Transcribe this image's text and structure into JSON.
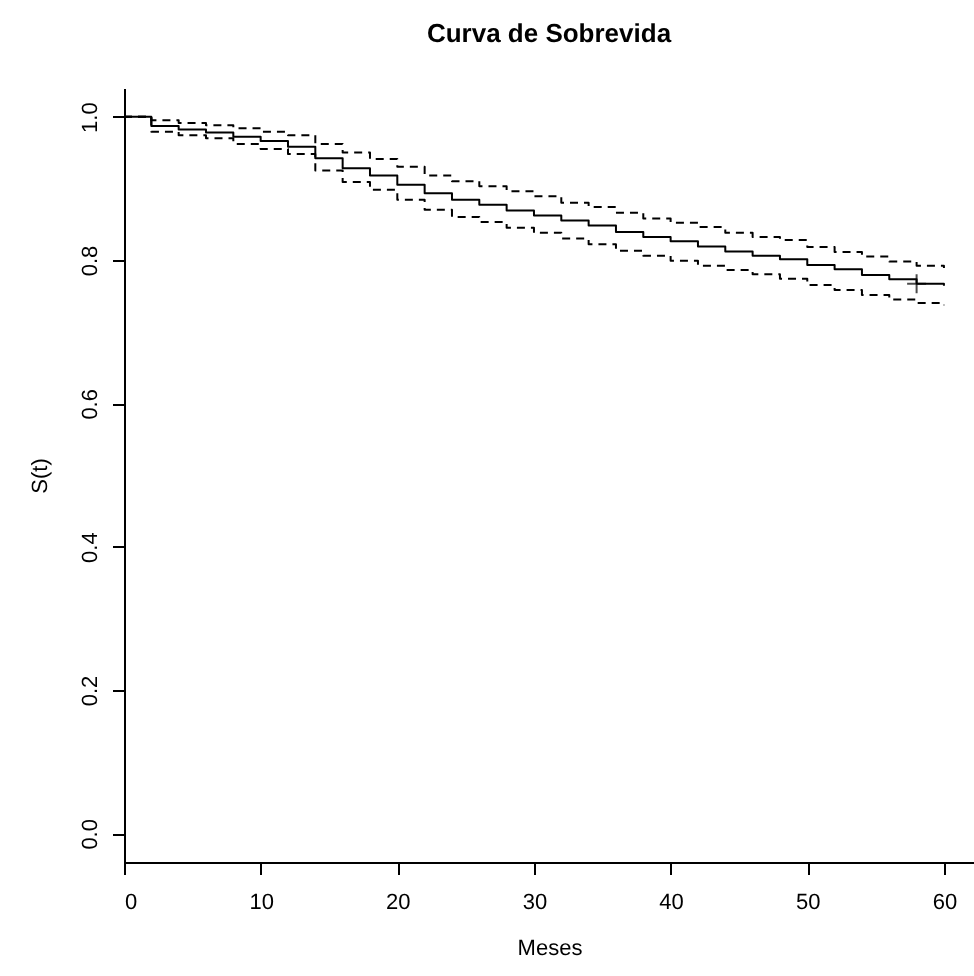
{
  "chart_data": {
    "type": "step",
    "title": "Curva de Sobrevida",
    "xlabel": "Meses",
    "ylabel": "S(t)",
    "x": [
      0,
      2,
      4,
      6,
      8,
      10,
      12,
      14,
      16,
      18,
      20,
      22,
      24,
      26,
      28,
      30,
      32,
      34,
      36,
      38,
      40,
      42,
      44,
      46,
      48,
      50,
      52,
      54,
      56,
      58,
      60
    ],
    "series": [
      {
        "color": "#000000",
        "line_style": "solid",
        "values": [
          1.0,
          0.987,
          0.982,
          0.978,
          0.972,
          0.966,
          0.958,
          0.942,
          0.928,
          0.918,
          0.905,
          0.893,
          0.884,
          0.877,
          0.869,
          0.862,
          0.855,
          0.848,
          0.839,
          0.832,
          0.826,
          0.819,
          0.812,
          0.806,
          0.801,
          0.793,
          0.787,
          0.779,
          0.773,
          0.767,
          0.764
        ]
      },
      {
        "color": "#000000",
        "line_style": "dashed",
        "values": [
          1.0,
          0.995,
          0.991,
          0.988,
          0.984,
          0.979,
          0.974,
          0.962,
          0.95,
          0.941,
          0.93,
          0.918,
          0.91,
          0.903,
          0.896,
          0.889,
          0.88,
          0.874,
          0.866,
          0.858,
          0.852,
          0.846,
          0.838,
          0.832,
          0.828,
          0.818,
          0.811,
          0.805,
          0.798,
          0.792,
          0.789
        ]
      },
      {
        "color": "#000000",
        "line_style": "dashed",
        "values": [
          1.0,
          0.979,
          0.974,
          0.97,
          0.962,
          0.955,
          0.948,
          0.925,
          0.909,
          0.898,
          0.884,
          0.87,
          0.86,
          0.853,
          0.845,
          0.838,
          0.83,
          0.822,
          0.813,
          0.806,
          0.799,
          0.792,
          0.786,
          0.78,
          0.774,
          0.765,
          0.758,
          0.751,
          0.745,
          0.74,
          0.737
        ]
      },
      {
        "type": "scatter",
        "marker": "cross",
        "color": "#000000",
        "x": [
          58
        ],
        "values": [
          0.767
        ]
      }
    ],
    "xlim": [
      0,
      62.2
    ],
    "xticks": [
      0,
      10,
      20,
      30,
      40,
      50,
      60
    ],
    "ylim": [
      -0.04,
      1.04
    ],
    "yticks": [
      {
        "value": 0,
        "label": "0.0"
      },
      0.2,
      0.4,
      0.6,
      0.8,
      {
        "value": 1,
        "label": "1.0"
      }
    ],
    "grid": false
  }
}
